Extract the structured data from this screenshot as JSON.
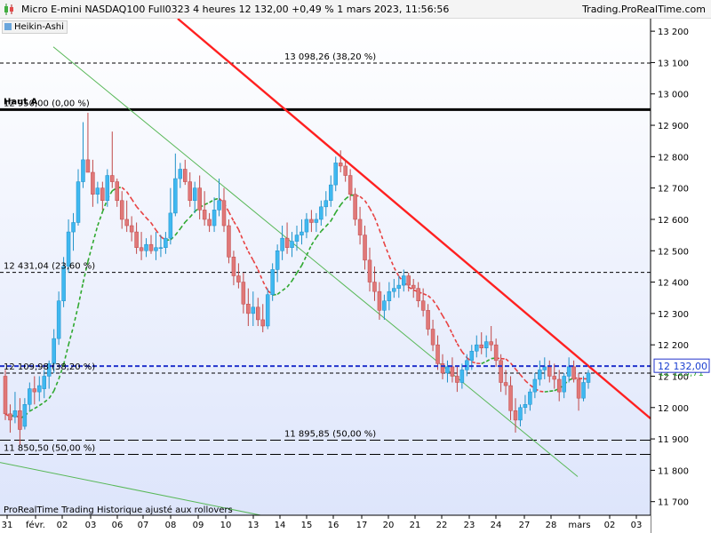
{
  "window": {
    "title": "Micro E-mini NASDAQ100 Full0323 4 heures 12 132,00 +0,49 % 1 mars 2023, 11:56:56",
    "brand": "Trading.ProRealTime.com",
    "indicator_tag": "Heikin-Ashi",
    "footer": "ProRealTime Trading  Historique ajusté aux rollovers"
  },
  "colors": {
    "bull": "#3fb8f0",
    "bear": "#e07878",
    "background_top": "#ffffff",
    "background_bottom": "#dce4fb",
    "resistance_line": "#ff2020",
    "channel_lines": "#58b858",
    "moving_average_green": "#2ea82e",
    "moving_average_red": "#e84040",
    "last_price_line": "#2233cc"
  },
  "chart_data": {
    "type": "candlestick",
    "style": "Heikin-Ashi",
    "y_axis": {
      "range": [
        11600,
        13240
      ],
      "ticks": [
        "11 700",
        "11 800",
        "11 900",
        "12 000",
        "12 100",
        "12 200",
        "12 300",
        "12 400",
        "12 500",
        "12 600",
        "12 700",
        "12 800",
        "12 900",
        "13 000",
        "13 100",
        "13 200"
      ]
    },
    "x_axis": {
      "ticks": [
        "31",
        "févr.",
        "02",
        "03",
        "06",
        "07",
        "08",
        "09",
        "10",
        "13",
        "14",
        "15",
        "16",
        "17",
        "20",
        "21",
        "22",
        "23",
        "24",
        "27",
        "28",
        "mars",
        "02",
        "03"
      ]
    },
    "levels": [
      {
        "label": "13 098,26 (38,20 %)",
        "value": 13098.26,
        "style": "dashed"
      },
      {
        "label": "12 950,00 (0,00 %)",
        "value": 12950.0,
        "style": "solid"
      },
      {
        "label": "12 431,04 (23,60 %)",
        "value": 12431.04,
        "style": "dashed"
      },
      {
        "label": "12 109,98 (38,20 %)",
        "value": 12109.98,
        "style": "dashed"
      },
      {
        "label": "11 895,85 (50,00 %)",
        "value": 11895.85,
        "style": "longdash"
      },
      {
        "label": "11 850,50 (50,00 %)",
        "value": 11850.5,
        "style": "longdash"
      }
    ],
    "annotation": "Haut A",
    "last_price": {
      "label": "12 132,00",
      "value": 12132.0
    },
    "moving_average_value": {
      "label": "12 123,71",
      "value": 12123.71
    },
    "candles": [
      [
        12100,
        12120,
        11960,
        11980
      ],
      [
        11980,
        12010,
        11920,
        11960
      ],
      [
        11970,
        12050,
        11950,
        11990
      ],
      [
        11990,
        12030,
        11880,
        11930
      ],
      [
        11940,
        12030,
        11930,
        12010
      ],
      [
        12010,
        12080,
        11990,
        12060
      ],
      [
        12060,
        12100,
        12010,
        12050
      ],
      [
        12050,
        12100,
        12020,
        12070
      ],
      [
        12060,
        12120,
        12030,
        12100
      ],
      [
        12100,
        12150,
        12060,
        12140
      ],
      [
        12140,
        12250,
        12110,
        12220
      ],
      [
        12220,
        12370,
        12200,
        12340
      ],
      [
        12340,
        12480,
        12320,
        12450
      ],
      [
        12450,
        12600,
        12430,
        12560
      ],
      [
        12560,
        12620,
        12500,
        12590
      ],
      [
        12590,
        12760,
        12580,
        12720
      ],
      [
        12720,
        12910,
        12700,
        12790
      ],
      [
        12790,
        12940,
        12760,
        12750
      ],
      [
        12750,
        12790,
        12640,
        12680
      ],
      [
        12680,
        12720,
        12650,
        12700
      ],
      [
        12700,
        12720,
        12630,
        12660
      ],
      [
        12660,
        12760,
        12640,
        12740
      ],
      [
        12740,
        12880,
        12700,
        12720
      ],
      [
        12720,
        12730,
        12640,
        12660
      ],
      [
        12660,
        12690,
        12570,
        12600
      ],
      [
        12600,
        12660,
        12560,
        12580
      ],
      [
        12580,
        12610,
        12530,
        12560
      ],
      [
        12560,
        12590,
        12490,
        12510
      ],
      [
        12510,
        12560,
        12470,
        12500
      ],
      [
        12500,
        12540,
        12480,
        12520
      ],
      [
        12520,
        12550,
        12490,
        12500
      ],
      [
        12500,
        12560,
        12470,
        12510
      ],
      [
        12510,
        12550,
        12480,
        12510
      ],
      [
        12510,
        12560,
        12490,
        12540
      ],
      [
        12540,
        12700,
        12520,
        12620
      ],
      [
        12620,
        12810,
        12610,
        12730
      ],
      [
        12730,
        12780,
        12700,
        12760
      ],
      [
        12760,
        12790,
        12710,
        12720
      ],
      [
        12720,
        12750,
        12640,
        12660
      ],
      [
        12660,
        12720,
        12620,
        12700
      ],
      [
        12700,
        12740,
        12600,
        12630
      ],
      [
        12630,
        12690,
        12580,
        12600
      ],
      [
        12600,
        12620,
        12560,
        12580
      ],
      [
        12580,
        12670,
        12560,
        12630
      ],
      [
        12630,
        12730,
        12610,
        12660
      ],
      [
        12660,
        12700,
        12560,
        12580
      ],
      [
        12580,
        12600,
        12460,
        12480
      ],
      [
        12480,
        12500,
        12390,
        12420
      ],
      [
        12420,
        12460,
        12380,
        12400
      ],
      [
        12400,
        12430,
        12300,
        12330
      ],
      [
        12330,
        12380,
        12260,
        12300
      ],
      [
        12300,
        12370,
        12260,
        12320
      ],
      [
        12320,
        12350,
        12260,
        12280
      ],
      [
        12280,
        12330,
        12240,
        12260
      ],
      [
        12260,
        12380,
        12250,
        12360
      ],
      [
        12360,
        12460,
        12340,
        12440
      ],
      [
        12440,
        12520,
        12400,
        12500
      ],
      [
        12500,
        12580,
        12470,
        12540
      ],
      [
        12540,
        12590,
        12490,
        12510
      ],
      [
        12510,
        12560,
        12480,
        12530
      ],
      [
        12530,
        12580,
        12500,
        12550
      ],
      [
        12550,
        12600,
        12520,
        12560
      ],
      [
        12560,
        12620,
        12540,
        12600
      ],
      [
        12600,
        12630,
        12560,
        12590
      ],
      [
        12590,
        12620,
        12560,
        12600
      ],
      [
        12600,
        12660,
        12580,
        12640
      ],
      [
        12640,
        12690,
        12610,
        12660
      ],
      [
        12660,
        12740,
        12640,
        12710
      ],
      [
        12710,
        12800,
        12690,
        12780
      ],
      [
        12780,
        12820,
        12750,
        12770
      ],
      [
        12770,
        12790,
        12720,
        12740
      ],
      [
        12740,
        12760,
        12660,
        12680
      ],
      [
        12680,
        12700,
        12580,
        12600
      ],
      [
        12600,
        12640,
        12520,
        12550
      ],
      [
        12550,
        12580,
        12440,
        12470
      ],
      [
        12470,
        12510,
        12370,
        12400
      ],
      [
        12400,
        12450,
        12340,
        12370
      ],
      [
        12370,
        12400,
        12280,
        12310
      ],
      [
        12310,
        12360,
        12280,
        12340
      ],
      [
        12340,
        12400,
        12310,
        12370
      ],
      [
        12370,
        12410,
        12350,
        12380
      ],
      [
        12380,
        12420,
        12350,
        12390
      ],
      [
        12390,
        12440,
        12370,
        12420
      ],
      [
        12420,
        12430,
        12370,
        12390
      ],
      [
        12390,
        12410,
        12350,
        12380
      ],
      [
        12380,
        12400,
        12320,
        12340
      ],
      [
        12340,
        12380,
        12290,
        12310
      ],
      [
        12310,
        12330,
        12230,
        12250
      ],
      [
        12250,
        12280,
        12180,
        12200
      ],
      [
        12200,
        12230,
        12120,
        12140
      ],
      [
        12140,
        12170,
        12090,
        12110
      ],
      [
        12110,
        12150,
        12080,
        12130
      ],
      [
        12130,
        12160,
        12080,
        12100
      ],
      [
        12100,
        12130,
        12050,
        12080
      ],
      [
        12080,
        12140,
        12060,
        12120
      ],
      [
        12120,
        12170,
        12100,
        12150
      ],
      [
        12150,
        12200,
        12120,
        12180
      ],
      [
        12180,
        12230,
        12160,
        12200
      ],
      [
        12200,
        12240,
        12170,
        12190
      ],
      [
        12190,
        12230,
        12160,
        12210
      ],
      [
        12210,
        12260,
        12180,
        12200
      ],
      [
        12200,
        12220,
        12130,
        12150
      ],
      [
        12150,
        12170,
        12050,
        12080
      ],
      [
        12080,
        12120,
        12040,
        12070
      ],
      [
        12070,
        12100,
        11960,
        11990
      ],
      [
        11990,
        12030,
        11920,
        11960
      ],
      [
        11960,
        12010,
        11940,
        12000
      ],
      [
        12000,
        12040,
        11980,
        12010
      ],
      [
        12010,
        12060,
        11990,
        12050
      ],
      [
        12050,
        12110,
        12030,
        12090
      ],
      [
        12090,
        12150,
        12070,
        12120
      ],
      [
        12120,
        12160,
        12090,
        12130
      ],
      [
        12130,
        12150,
        12080,
        12100
      ],
      [
        12100,
        12140,
        12060,
        12090
      ],
      [
        12090,
        12120,
        12020,
        12050
      ],
      [
        12050,
        12110,
        12030,
        12100
      ],
      [
        12100,
        12160,
        12080,
        12130
      ],
      [
        12130,
        12150,
        12080,
        12090
      ],
      [
        12090,
        12110,
        11990,
        12030
      ],
      [
        12030,
        12100,
        12020,
        12080
      ],
      [
        12080,
        12120,
        12060,
        12110
      ]
    ]
  }
}
